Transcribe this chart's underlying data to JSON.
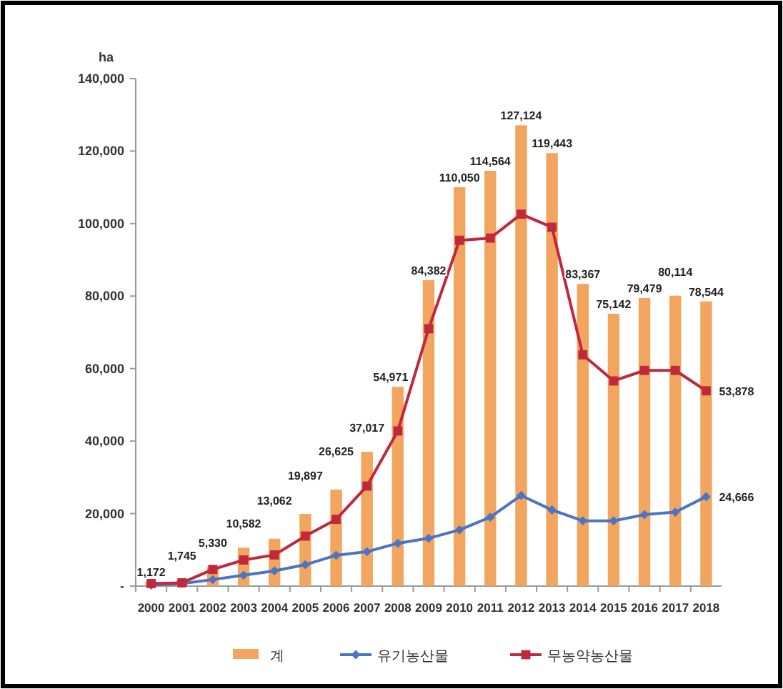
{
  "chart_data": {
    "type": "bar",
    "ylabel": "ha",
    "categories": [
      "2000",
      "2001",
      "2002",
      "2003",
      "2004",
      "2005",
      "2006",
      "2007",
      "2008",
      "2009",
      "2010",
      "2011",
      "2012",
      "2013",
      "2014",
      "2015",
      "2016",
      "2017",
      "2018"
    ],
    "series": [
      {
        "name": "계",
        "color": "#f2a55e",
        "values": [
          1172,
          1745,
          5330,
          10582,
          13062,
          19897,
          26625,
          37017,
          54971,
          84382,
          110050,
          114564,
          127124,
          119443,
          83367,
          75142,
          79479,
          80114,
          78544
        ],
        "value_labels": [
          "1,172",
          "1,745",
          "5,330",
          "10,582",
          "13,062",
          "19,897",
          "26,625",
          "37,017",
          "54,971",
          "84,382",
          "110,050",
          "114,564",
          "127,124",
          "119,443",
          "83,367",
          "75,142",
          "79,479",
          "80,114",
          "78,544"
        ]
      },
      {
        "name": "유기농산물",
        "type": "line",
        "color": "#4a74c4",
        "marker": "diamond",
        "values": [
          300,
          700,
          1800,
          3000,
          4200,
          5900,
          8500,
          9500,
          11800,
          13200,
          15500,
          19000,
          25000,
          21000,
          18000,
          18000,
          19700,
          20400,
          24666
        ],
        "value_labels": [
          null,
          null,
          null,
          null,
          null,
          null,
          null,
          null,
          null,
          null,
          null,
          null,
          null,
          null,
          null,
          null,
          null,
          null,
          "24,666"
        ]
      },
      {
        "name": "무농약농산물",
        "type": "line",
        "color": "#c0283c",
        "marker": "square",
        "values": [
          700,
          900,
          4600,
          7200,
          8600,
          13800,
          18400,
          27600,
          42800,
          71000,
          95400,
          96000,
          102600,
          99000,
          63800,
          56600,
          59500,
          59500,
          53878
        ],
        "value_labels": [
          null,
          null,
          null,
          null,
          null,
          null,
          null,
          null,
          null,
          null,
          null,
          null,
          null,
          null,
          null,
          null,
          null,
          null,
          "53,878"
        ]
      }
    ],
    "ylim": [
      0,
      140000
    ],
    "yticks": [
      {
        "value": 0,
        "label": "-"
      },
      {
        "value": 20000,
        "label": "20,000"
      },
      {
        "value": 40000,
        "label": "40,000"
      },
      {
        "value": 60000,
        "label": "60,000"
      },
      {
        "value": 80000,
        "label": "80,000"
      },
      {
        "value": 100000,
        "label": "100,000"
      },
      {
        "value": 120000,
        "label": "120,000"
      },
      {
        "value": 140000,
        "label": "140,000"
      }
    ],
    "grid": false,
    "legend": "bottom"
  }
}
